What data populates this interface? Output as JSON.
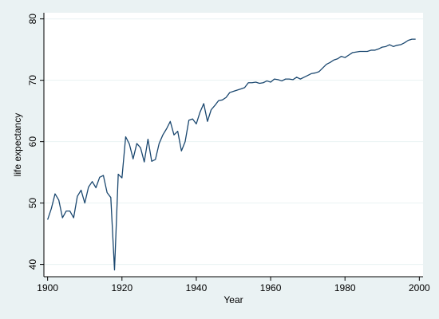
{
  "chart_data": {
    "type": "line",
    "title": "",
    "xlabel": "Year",
    "ylabel": "life expectancy",
    "xlim": [
      1899,
      2001
    ],
    "ylim": [
      38,
      81
    ],
    "xticks": [
      1900,
      1920,
      1940,
      1960,
      1980,
      2000
    ],
    "yticks": [
      40,
      50,
      60,
      70,
      80
    ],
    "grid": true,
    "colors": {
      "background": "#eaf2f3",
      "plot_area": "#ffffff",
      "line": "#1a476f",
      "grid": "#eaf2f3",
      "axis": "#000000"
    },
    "series": [
      {
        "x": [
          1900,
          1901,
          1902,
          1903,
          1904,
          1905,
          1906,
          1907,
          1908,
          1909,
          1910,
          1911,
          1912,
          1913,
          1914,
          1915,
          1916,
          1917,
          1918,
          1919,
          1920,
          1921,
          1922,
          1923,
          1924,
          1925,
          1926,
          1927,
          1928,
          1929,
          1930,
          1931,
          1932,
          1933,
          1934,
          1935,
          1936,
          1937,
          1938,
          1939,
          1940,
          1941,
          1942,
          1943,
          1944,
          1945,
          1946,
          1947,
          1948,
          1949,
          1950,
          1951,
          1952,
          1953,
          1954,
          1955,
          1956,
          1957,
          1958,
          1959,
          1960,
          1961,
          1962,
          1963,
          1964,
          1965,
          1966,
          1967,
          1968,
          1969,
          1970,
          1971,
          1972,
          1973,
          1974,
          1975,
          1976,
          1977,
          1978,
          1979,
          1980,
          1981,
          1982,
          1983,
          1984,
          1985,
          1986,
          1987,
          1988,
          1989,
          1990,
          1991,
          1992,
          1993,
          1994,
          1995,
          1996,
          1997,
          1998,
          1999
        ],
        "y": [
          47.3,
          49.1,
          51.5,
          50.5,
          47.6,
          48.7,
          48.7,
          47.6,
          51.1,
          52.1,
          50.0,
          52.6,
          53.5,
          52.5,
          54.2,
          54.5,
          51.7,
          50.9,
          39.1,
          54.7,
          54.1,
          60.8,
          59.6,
          57.2,
          59.7,
          59.0,
          56.7,
          60.4,
          56.8,
          57.1,
          59.7,
          61.1,
          62.1,
          63.3,
          61.1,
          61.7,
          58.5,
          60.0,
          63.5,
          63.7,
          62.9,
          64.8,
          66.2,
          63.3,
          65.2,
          65.9,
          66.7,
          66.8,
          67.2,
          68.0,
          68.2,
          68.4,
          68.6,
          68.8,
          69.6,
          69.6,
          69.7,
          69.5,
          69.6,
          69.9,
          69.7,
          70.2,
          70.1,
          69.9,
          70.2,
          70.2,
          70.1,
          70.5,
          70.2,
          70.5,
          70.8,
          71.1,
          71.2,
          71.4,
          72.0,
          72.6,
          72.9,
          73.3,
          73.5,
          73.9,
          73.7,
          74.1,
          74.5,
          74.6,
          74.7,
          74.7,
          74.7,
          74.9,
          74.9,
          75.1,
          75.4,
          75.5,
          75.8,
          75.5,
          75.7,
          75.8,
          76.1,
          76.5,
          76.7,
          76.7
        ]
      }
    ]
  }
}
